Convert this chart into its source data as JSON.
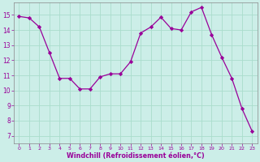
{
  "x": [
    0,
    1,
    2,
    3,
    4,
    5,
    6,
    7,
    8,
    9,
    10,
    11,
    12,
    13,
    14,
    15,
    16,
    17,
    18,
    19,
    20,
    21,
    22,
    23
  ],
  "y": [
    14.9,
    14.8,
    14.2,
    12.5,
    10.8,
    10.8,
    10.1,
    10.1,
    10.9,
    11.1,
    11.1,
    11.9,
    13.8,
    14.2,
    14.85,
    14.1,
    14.0,
    15.2,
    15.5,
    13.7,
    12.2,
    10.8,
    8.8,
    7.3
  ],
  "line_color": "#990099",
  "marker": "D",
  "marker_size": 2.2,
  "bg_color": "#cceee8",
  "grid_color": "#aaddcc",
  "axis_color": "#888888",
  "xlabel": "Windchill (Refroidissement éolien,°C)",
  "xlabel_color": "#990099",
  "tick_color": "#990099",
  "ylabel_ticks": [
    7,
    8,
    9,
    10,
    11,
    12,
    13,
    14,
    15
  ],
  "ylim": [
    6.5,
    15.8
  ],
  "xlim": [
    -0.5,
    23.5
  ],
  "ytick_fontsize": 5.5,
  "xtick_fontsize": 4.5,
  "xlabel_fontsize": 5.8
}
